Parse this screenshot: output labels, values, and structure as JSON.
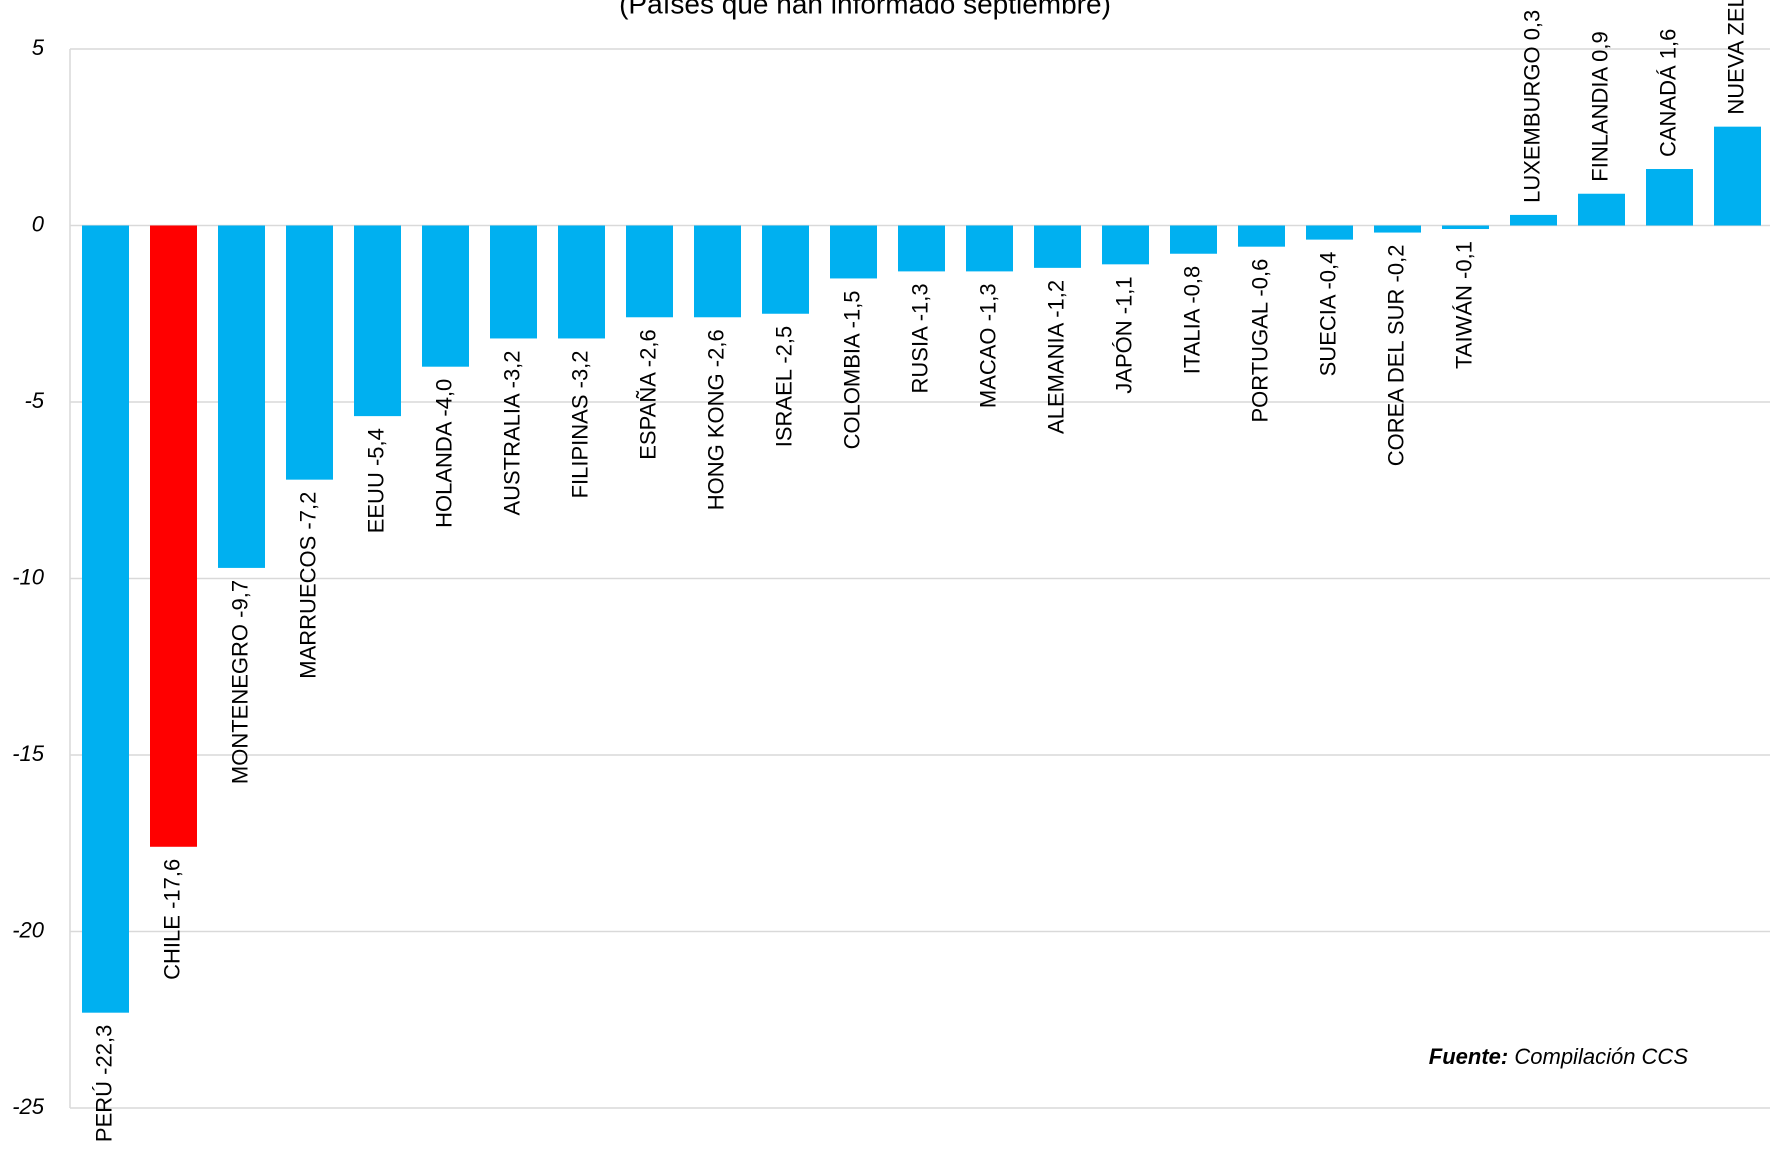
{
  "chart_data": {
    "type": "bar",
    "subtitle": "(Países que han informado septiembre)",
    "categories": [
      "PERÚ",
      "CHILE",
      "MONTENEGRO",
      "MARRUECOS",
      "EEUU",
      "HOLANDA",
      "AUSTRALIA",
      "FILIPINAS",
      "ESPAÑA",
      "HONG KONG",
      "ISRAEL",
      "COLOMBIA",
      "RUSIA",
      "MACAO",
      "ALEMANIA",
      "JAPÓN",
      "ITALIA",
      "PORTUGAL",
      "SUECIA",
      "COREA DEL SUR",
      "TAIWÁN",
      "LUXEMBURGO",
      "FINLANDIA",
      "CANADÁ",
      "NUEVA ZEL"
    ],
    "values": [
      -22.3,
      -17.6,
      -9.7,
      -7.2,
      -5.4,
      -4.0,
      -3.2,
      -3.2,
      -2.6,
      -2.6,
      -2.5,
      -1.5,
      -1.3,
      -1.3,
      -1.2,
      -1.1,
      -0.8,
      -0.6,
      -0.4,
      -0.2,
      -0.1,
      0.3,
      0.9,
      1.6,
      2.8
    ],
    "value_labels": [
      "-22,3",
      "-17,6",
      "-9,7",
      "-7,2",
      "-5,4",
      "-4,0",
      "-3,2",
      "-3,2",
      "-2,6",
      "-2,6",
      "-2,5",
      "-1,5",
      "-1,3",
      "-1,3",
      "-1,2",
      "-1,1",
      "-0,8",
      "-0,6",
      "-0,4",
      "-0,2",
      "-0,1",
      "0,3",
      "0,9",
      "1,6",
      null
    ],
    "colors": [
      "#00b0f0",
      "#ff0000",
      "#00b0f0",
      "#00b0f0",
      "#00b0f0",
      "#00b0f0",
      "#00b0f0",
      "#00b0f0",
      "#00b0f0",
      "#00b0f0",
      "#00b0f0",
      "#00b0f0",
      "#00b0f0",
      "#00b0f0",
      "#00b0f0",
      "#00b0f0",
      "#00b0f0",
      "#00b0f0",
      "#00b0f0",
      "#00b0f0",
      "#00b0f0",
      "#00b0f0",
      "#00b0f0",
      "#00b0f0",
      "#00b0f0"
    ],
    "ylim": [
      -25,
      5
    ],
    "yticks": [
      5,
      0,
      -5,
      -10,
      -15,
      -20,
      -25
    ],
    "grid": true,
    "source_label": "Fuente:",
    "source": "Compilación CCS"
  }
}
